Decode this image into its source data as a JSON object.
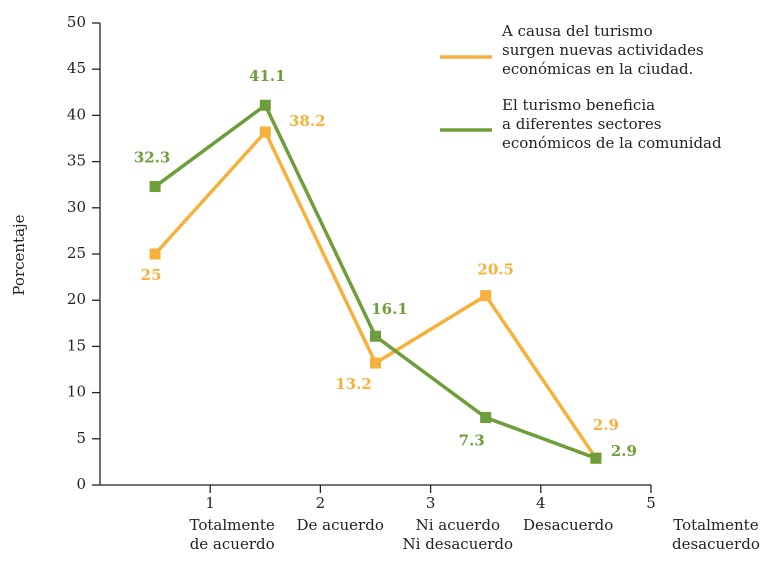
{
  "chart_data": {
    "type": "line",
    "y_label": "Porcentaje",
    "categories": [
      "Totalmente\nde acuerdo",
      "De acuerdo",
      "Ni acuerdo\nNi desacuerdo",
      "Desacuerdo",
      "Totalmente\ndesacuerdo"
    ],
    "x": [
      0.5,
      1.5,
      2.5,
      3.5,
      4.5
    ],
    "series": [
      {
        "name": "A causa del turismo\nsurgen nuevas actividades\neconómicas en la ciudad.",
        "color": "#f7b13a",
        "values": [
          25,
          38.2,
          13.2,
          20.5,
          2.9
        ]
      },
      {
        "name": "El turismo beneficia\na diferentes sectores\neconómicos de la comunidad",
        "color": "#6e9e3a",
        "values": [
          32.3,
          41.1,
          16.1,
          7.3,
          2.9
        ]
      }
    ],
    "xlim": [
      0,
      5
    ],
    "xticks": [
      1,
      2,
      3,
      4,
      5
    ],
    "ylim": [
      0,
      50
    ],
    "yticks": [
      0,
      5,
      10,
      15,
      20,
      25,
      30,
      35,
      40,
      45,
      50
    ],
    "legend": "upper right"
  }
}
